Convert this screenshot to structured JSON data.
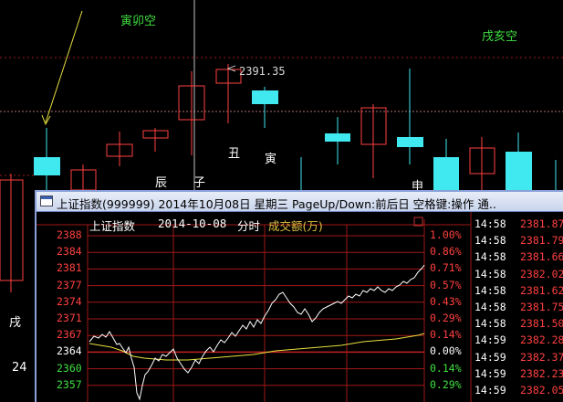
{
  "background": {
    "labels": {
      "yinmao_kong": "寅卯空",
      "xuhai_kong": "戌亥空",
      "price_mark": "2391.35",
      "chou": "丑",
      "yin": "寅",
      "chen": "辰",
      "zi": "子",
      "shen": "申",
      "xu": "戌",
      "num_24": "24"
    }
  },
  "popup": {
    "title": "上证指数(999999) 2014年10月08日 星期三 PageUp/Down:前后日 空格键:操作 通..",
    "chart": {
      "index_name": "上证指数",
      "date": "2014-10-08",
      "mode": "分时",
      "volume_label": "成交额(万)",
      "y_ticks": [
        "2388",
        "2384",
        "2381",
        "2377",
        "2374",
        "2371",
        "2367",
        "2364",
        "2360",
        "2357"
      ],
      "pct_ticks": [
        "1.00%",
        "0.86%",
        "0.71%",
        "0.57%",
        "0.43%",
        "0.29%",
        "0.14%",
        "0.00%",
        "0.14%",
        "0.29%"
      ]
    },
    "ticks": [
      {
        "time": "14:58",
        "price": "2381.87"
      },
      {
        "time": "14:58",
        "price": "2381.79"
      },
      {
        "time": "14:58",
        "price": "2381.66"
      },
      {
        "time": "14:58",
        "price": "2382.02"
      },
      {
        "time": "14:58",
        "price": "2381.62"
      },
      {
        "time": "14:58",
        "price": "2381.75"
      },
      {
        "time": "14:58",
        "price": "2381.50"
      },
      {
        "time": "14:59",
        "price": "2382.28"
      },
      {
        "time": "14:59",
        "price": "2382.37"
      },
      {
        "time": "14:59",
        "price": "2382.23"
      },
      {
        "time": "14:59",
        "price": "2382.05"
      },
      {
        "time": "14:59",
        "price": "2382.15"
      }
    ]
  },
  "colors": {
    "up": "#ff4040",
    "down": "#40e8f0",
    "grid": "#a01818",
    "avg_line": "#e8e040"
  }
}
